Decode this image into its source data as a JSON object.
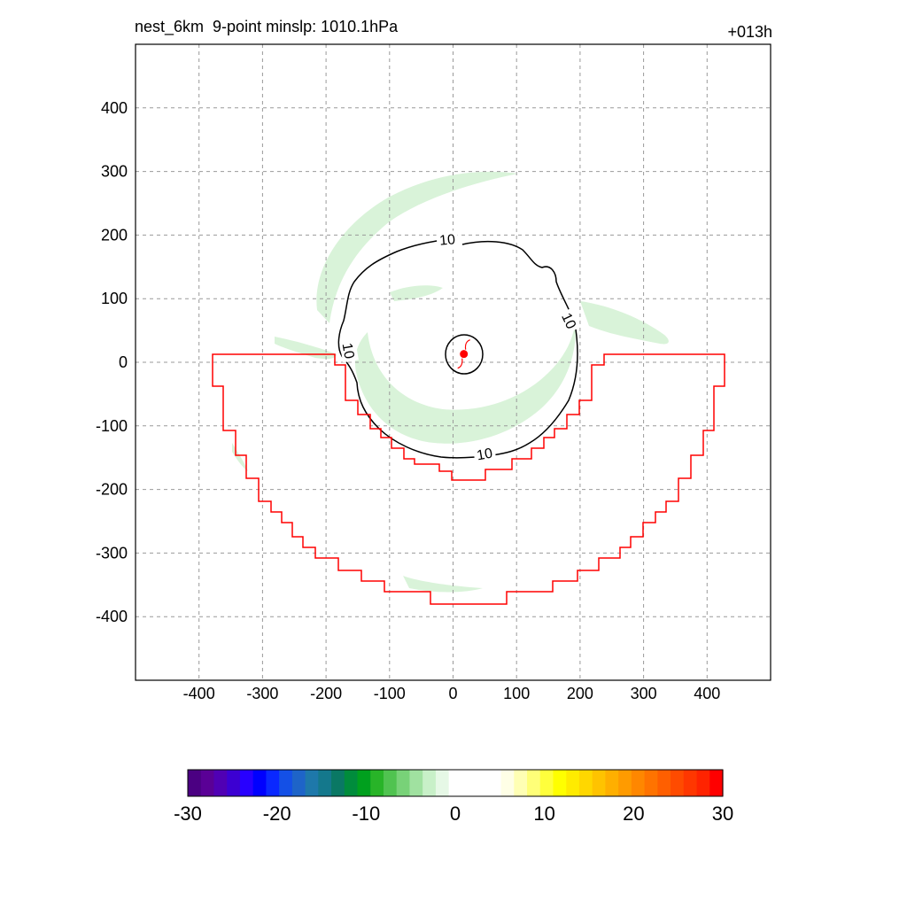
{
  "header": {
    "left_title": "nest_6km  9-point minslp: 1010.1hPa",
    "right_title": "+013h"
  },
  "chart_data": {
    "type": "contour",
    "xlim": [
      -500,
      500
    ],
    "ylim": [
      -500,
      500
    ],
    "x_ticks": [
      -400,
      -300,
      -200,
      -100,
      0,
      100,
      200,
      300,
      400
    ],
    "y_ticks": [
      400,
      300,
      200,
      100,
      0,
      -100,
      -200,
      -300,
      -400
    ],
    "grid": true,
    "contour_label": "10",
    "storm_center": {
      "x": 17,
      "y": 13
    },
    "colorbar": {
      "min": -30,
      "max": 30,
      "ticks": [
        "-30",
        "-20",
        "-10",
        "0",
        "10",
        "20",
        "30"
      ],
      "colors": [
        "#4b0082",
        "#5a0096",
        "#5000b4",
        "#3c00d2",
        "#2800ff",
        "#0000ff",
        "#0a28ff",
        "#1450e6",
        "#1e64c8",
        "#1e78aa",
        "#14788c",
        "#0a7864",
        "#008c3c",
        "#00a01e",
        "#28b428",
        "#50c350",
        "#78d278",
        "#a0e1a0",
        "#c8f0c8",
        "#e6f8e6",
        "#ffffff",
        "#ffffff",
        "#ffffff",
        "#ffffff",
        "#ffffe6",
        "#ffffb4",
        "#ffff78",
        "#ffff3c",
        "#ffff00",
        "#ffeb00",
        "#ffd700",
        "#ffc300",
        "#ffaf00",
        "#ff9b00",
        "#ff8700",
        "#ff7300",
        "#ff5f00",
        "#ff4b00",
        "#ff3700",
        "#ff2300",
        "#ff0000"
      ]
    }
  }
}
